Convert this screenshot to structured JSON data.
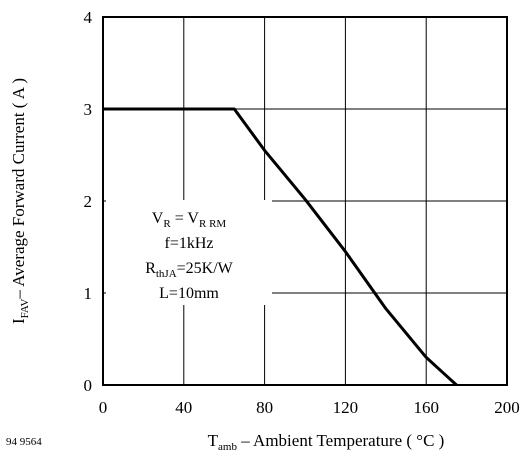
{
  "chart_data": {
    "type": "line",
    "xlabel": {
      "main": "T",
      "sub": "amb",
      "rest": " – Ambient Temperature ( °C )"
    },
    "ylabel": {
      "main": "I",
      "sub": "FAV",
      "rest": "– Average Forward Current ( A )"
    },
    "xlim": [
      0,
      200
    ],
    "ylim": [
      0,
      4
    ],
    "x_ticks": [
      "0",
      "40",
      "80",
      "120",
      "160",
      "200"
    ],
    "y_ticks": [
      "0",
      "1",
      "2",
      "3",
      "4"
    ],
    "grid": true,
    "series": [
      {
        "x": [
          0,
          65,
          80,
          100,
          120,
          140,
          160,
          170,
          175
        ],
        "y": [
          3.0,
          3.0,
          2.55,
          2.02,
          1.45,
          0.83,
          0.3,
          0.1,
          0.0
        ]
      }
    ],
    "annotations": [
      {
        "parts": [
          {
            "t": "V"
          },
          {
            "t": "R",
            "sub": true
          },
          {
            "t": " = V"
          },
          {
            "t": "R RM",
            "sub": true
          }
        ]
      },
      {
        "parts": [
          {
            "t": "f=1kHz"
          }
        ]
      },
      {
        "parts": [
          {
            "t": "R"
          },
          {
            "t": "thJA",
            "sub": true
          },
          {
            "t": "=25K/W"
          }
        ]
      },
      {
        "parts": [
          {
            "t": "L=10mm"
          }
        ]
      }
    ],
    "figure_id": "94 9564"
  }
}
